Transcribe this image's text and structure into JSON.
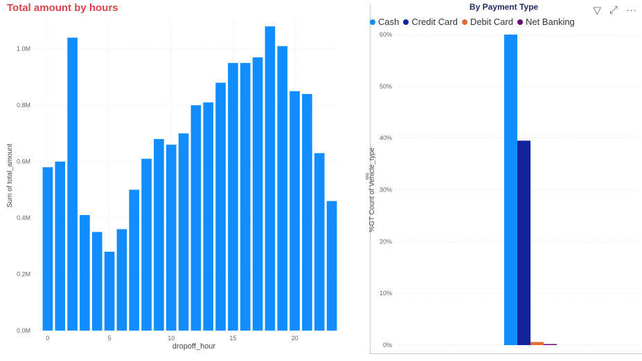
{
  "left_chart": {
    "title": "Total amount by hours",
    "chart_data": {
      "type": "bar",
      "title": "Total amount by hours",
      "xlabel": "dropoff_hour",
      "ylabel": "Sum of total_amount",
      "categories": [
        0,
        1,
        2,
        3,
        4,
        5,
        6,
        7,
        8,
        9,
        10,
        11,
        12,
        13,
        14,
        15,
        16,
        17,
        18,
        19,
        20,
        21,
        22,
        23
      ],
      "values": [
        0.58,
        0.6,
        1.04,
        0.41,
        0.35,
        0.28,
        0.36,
        0.5,
        0.61,
        0.68,
        0.66,
        0.7,
        0.8,
        0.81,
        0.88,
        0.95,
        0.95,
        0.97,
        1.08,
        1.01,
        0.85,
        0.84,
        0.63,
        0.46
      ],
      "value_unit": "M",
      "ylim": [
        0,
        1.1
      ],
      "y_ticks": [
        "0.0M",
        "0.2M",
        "0.4M",
        "0.6M",
        "0.8M",
        "1.0M"
      ],
      "y_tick_values": [
        0,
        0.2,
        0.4,
        0.6,
        0.8,
        1.0
      ],
      "x_ticks": [
        "0",
        "5",
        "10",
        "15",
        "20"
      ],
      "x_tick_values": [
        0,
        5,
        10,
        15,
        20
      ],
      "color": "#118dff",
      "grid": true
    }
  },
  "right_chart": {
    "title": "By Payment Type",
    "toolbar": {
      "filter_icon": "filter-icon",
      "focus_icon": "focus-mode-icon",
      "more_icon": "more-options-icon",
      "more_label": "···",
      "filter_label": "▽",
      "focus_label": "⤢"
    },
    "chart_data": {
      "type": "bar",
      "title": "By Payment Type",
      "xlabel": "",
      "ylabel": "%GT Count of Vehicle_type",
      "series": [
        {
          "name": "Cash",
          "values": [
            60.0
          ],
          "color": "#118dff"
        },
        {
          "name": "Credit Card",
          "values": [
            39.5
          ],
          "color": "#12239e"
        },
        {
          "name": "Debit Card",
          "values": [
            0.6
          ],
          "color": "#e66c37"
        },
        {
          "name": "Net Banking",
          "values": [
            0.2
          ],
          "color": "#6b007b"
        }
      ],
      "categories": [
        ""
      ],
      "ylim": [
        0,
        60
      ],
      "y_ticks": [
        "0%",
        "10%",
        "20%",
        "30%",
        "40%",
        "50%",
        "60%"
      ],
      "y_tick_values": [
        0,
        10,
        20,
        30,
        40,
        50,
        60
      ],
      "legend": "top-left",
      "grid": true
    }
  }
}
